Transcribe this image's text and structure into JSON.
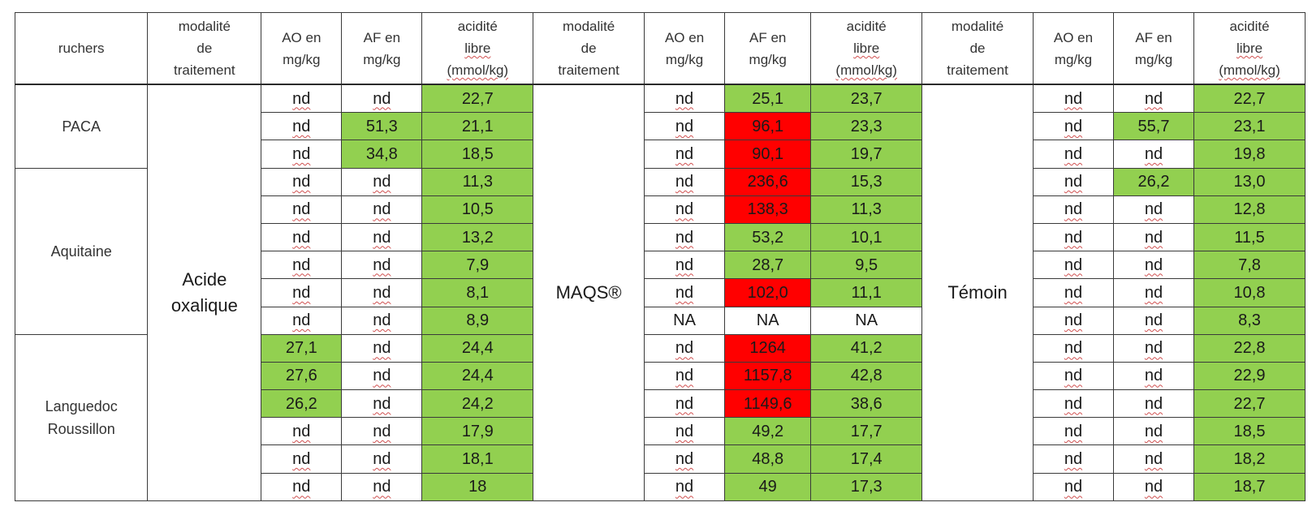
{
  "headers": {
    "ruchers": "ruchers",
    "modalite": [
      "modalité",
      "de",
      "traitement"
    ],
    "ao": [
      "AO en",
      "mg/kg"
    ],
    "af": [
      "AF en",
      "mg/kg"
    ],
    "acidite": [
      "acidité",
      "libre",
      "(mmol/kg)"
    ]
  },
  "regions": [
    {
      "lines": [
        "PACA"
      ],
      "rows": 3
    },
    {
      "lines": [
        "Aquitaine"
      ],
      "rows": 6
    },
    {
      "lines": [
        "Languedoc",
        "Roussillon"
      ],
      "rows": 6
    }
  ],
  "treatments": [
    {
      "lines": [
        "Acide",
        "oxalique"
      ]
    },
    {
      "lines": [
        "MAQS®"
      ]
    },
    {
      "lines": [
        "Témoin"
      ]
    }
  ],
  "colors": {
    "green": "#92d050",
    "red": "#ff0000"
  },
  "rows": [
    [
      [
        "nd",
        "w"
      ],
      [
        "nd",
        "w"
      ],
      [
        "22,7",
        "g"
      ],
      [
        "nd",
        "w"
      ],
      [
        "25,1",
        "g"
      ],
      [
        "23,7",
        "g"
      ],
      [
        "nd",
        "w"
      ],
      [
        "nd",
        "w"
      ],
      [
        "22,7",
        "g"
      ]
    ],
    [
      [
        "nd",
        "w"
      ],
      [
        "51,3",
        "g"
      ],
      [
        "21,1",
        "g"
      ],
      [
        "nd",
        "w"
      ],
      [
        "96,1",
        "r"
      ],
      [
        "23,3",
        "g"
      ],
      [
        "nd",
        "w"
      ],
      [
        "55,7",
        "g"
      ],
      [
        "23,1",
        "g"
      ]
    ],
    [
      [
        "nd",
        "w"
      ],
      [
        "34,8",
        "g"
      ],
      [
        "18,5",
        "g"
      ],
      [
        "nd",
        "w"
      ],
      [
        "90,1",
        "r"
      ],
      [
        "19,7",
        "g"
      ],
      [
        "nd",
        "w"
      ],
      [
        "nd",
        "w"
      ],
      [
        "19,8",
        "g"
      ]
    ],
    [
      [
        "nd",
        "w"
      ],
      [
        "nd",
        "w"
      ],
      [
        "11,3",
        "g"
      ],
      [
        "nd",
        "w"
      ],
      [
        "236,6",
        "r"
      ],
      [
        "15,3",
        "g"
      ],
      [
        "nd",
        "w"
      ],
      [
        "26,2",
        "g"
      ],
      [
        "13,0",
        "g"
      ]
    ],
    [
      [
        "nd",
        "w"
      ],
      [
        "nd",
        "w"
      ],
      [
        "10,5",
        "g"
      ],
      [
        "nd",
        "w"
      ],
      [
        "138,3",
        "r"
      ],
      [
        "11,3",
        "g"
      ],
      [
        "nd",
        "w"
      ],
      [
        "nd",
        "w"
      ],
      [
        "12,8",
        "g"
      ]
    ],
    [
      [
        "nd",
        "w"
      ],
      [
        "nd",
        "w"
      ],
      [
        "13,2",
        "g"
      ],
      [
        "nd",
        "w"
      ],
      [
        "53,2",
        "g"
      ],
      [
        "10,1",
        "g"
      ],
      [
        "nd",
        "w"
      ],
      [
        "nd",
        "w"
      ],
      [
        "11,5",
        "g"
      ]
    ],
    [
      [
        "nd",
        "w"
      ],
      [
        "nd",
        "w"
      ],
      [
        "7,9",
        "g"
      ],
      [
        "nd",
        "w"
      ],
      [
        "28,7",
        "g"
      ],
      [
        "9,5",
        "g"
      ],
      [
        "nd",
        "w"
      ],
      [
        "nd",
        "w"
      ],
      [
        "7,8",
        "g"
      ]
    ],
    [
      [
        "nd",
        "w"
      ],
      [
        "nd",
        "w"
      ],
      [
        "8,1",
        "g"
      ],
      [
        "nd",
        "w"
      ],
      [
        "102,0",
        "r"
      ],
      [
        "11,1",
        "g"
      ],
      [
        "nd",
        "w"
      ],
      [
        "nd",
        "w"
      ],
      [
        "10,8",
        "g"
      ]
    ],
    [
      [
        "nd",
        "w"
      ],
      [
        "nd",
        "w"
      ],
      [
        "8,9",
        "g"
      ],
      [
        "NA",
        "w"
      ],
      [
        "NA",
        "w"
      ],
      [
        "NA",
        "w"
      ],
      [
        "nd",
        "w"
      ],
      [
        "nd",
        "w"
      ],
      [
        "8,3",
        "g"
      ]
    ],
    [
      [
        "27,1",
        "g"
      ],
      [
        "nd",
        "w"
      ],
      [
        "24,4",
        "g"
      ],
      [
        "nd",
        "w"
      ],
      [
        "1264",
        "r"
      ],
      [
        "41,2",
        "g"
      ],
      [
        "nd",
        "w"
      ],
      [
        "nd",
        "w"
      ],
      [
        "22,8",
        "g"
      ]
    ],
    [
      [
        "27,6",
        "g"
      ],
      [
        "nd",
        "w"
      ],
      [
        "24,4",
        "g"
      ],
      [
        "nd",
        "w"
      ],
      [
        "1157,8",
        "r"
      ],
      [
        "42,8",
        "g"
      ],
      [
        "nd",
        "w"
      ],
      [
        "nd",
        "w"
      ],
      [
        "22,9",
        "g"
      ]
    ],
    [
      [
        "26,2",
        "g"
      ],
      [
        "nd",
        "w"
      ],
      [
        "24,2",
        "g"
      ],
      [
        "nd",
        "w"
      ],
      [
        "1149,6",
        "r"
      ],
      [
        "38,6",
        "g"
      ],
      [
        "nd",
        "w"
      ],
      [
        "nd",
        "w"
      ],
      [
        "22,7",
        "g"
      ]
    ],
    [
      [
        "nd",
        "w"
      ],
      [
        "nd",
        "w"
      ],
      [
        "17,9",
        "g"
      ],
      [
        "nd",
        "w"
      ],
      [
        "49,2",
        "g"
      ],
      [
        "17,7",
        "g"
      ],
      [
        "nd",
        "w"
      ],
      [
        "nd",
        "w"
      ],
      [
        "18,5",
        "g"
      ]
    ],
    [
      [
        "nd",
        "w"
      ],
      [
        "nd",
        "w"
      ],
      [
        "18,1",
        "g"
      ],
      [
        "nd",
        "w"
      ],
      [
        "48,8",
        "g"
      ],
      [
        "17,4",
        "g"
      ],
      [
        "nd",
        "w"
      ],
      [
        "nd",
        "w"
      ],
      [
        "18,2",
        "g"
      ]
    ],
    [
      [
        "nd",
        "w"
      ],
      [
        "nd",
        "w"
      ],
      [
        "18",
        "g"
      ],
      [
        "nd",
        "w"
      ],
      [
        "49",
        "g"
      ],
      [
        "17,3",
        "g"
      ],
      [
        "nd",
        "w"
      ],
      [
        "nd",
        "w"
      ],
      [
        "18,7",
        "g"
      ]
    ]
  ]
}
